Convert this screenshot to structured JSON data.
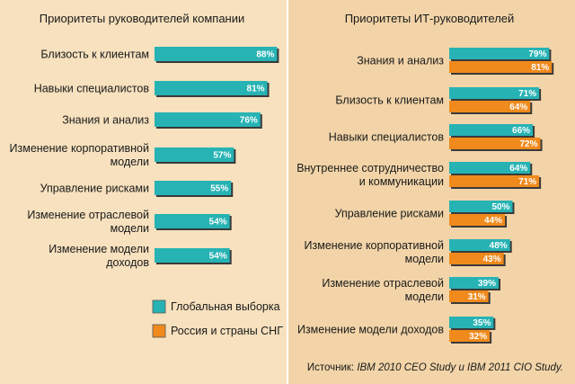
{
  "colors": {
    "background_left": "#f7e1be",
    "background_right": "#f2d4a8",
    "divider": "#ffffff",
    "global": "#27b3b4",
    "russia": "#f08a1c",
    "shadow": "#3a3a3a"
  },
  "legend": {
    "global": "Глобальная выборка",
    "russia": "Россия и страны СНГ"
  },
  "source": {
    "prefix": "Источник: ",
    "text": "IBM 2010 CEO Study и IBM 2011 CIO Study."
  },
  "chart_data": [
    {
      "type": "bar",
      "orientation": "horizontal",
      "title": "Приоритеты руководителей компании",
      "value_suffix": "%",
      "xlim": [
        0,
        100
      ],
      "categories": [
        [
          "Близость к клиентам"
        ],
        [
          "Навыки специалистов"
        ],
        [
          "Знания и анализ"
        ],
        [
          "Изменение корпоративной",
          "модели"
        ],
        [
          "Управление рисками"
        ],
        [
          "Изменение отраслевой",
          "модели"
        ],
        [
          "Изменение модели",
          "доходов"
        ]
      ],
      "series": [
        {
          "key": "global",
          "values": [
            88,
            81,
            76,
            57,
            55,
            54,
            54
          ]
        }
      ]
    },
    {
      "type": "bar",
      "orientation": "horizontal",
      "title": "Приоритеты ИТ-руководителей",
      "value_suffix": "%",
      "xlim": [
        0,
        100
      ],
      "categories": [
        [
          "Знания и анализ"
        ],
        [
          "Близость к клиентам"
        ],
        [
          "Навыки специалистов"
        ],
        [
          "Внутреннее сотрудничество",
          "и коммуникации"
        ],
        [
          "Управление рисками"
        ],
        [
          "Изменение корпоративной",
          "модели"
        ],
        [
          "Изменение отраслевой",
          "модели"
        ],
        [
          "Изменение модели доходов"
        ]
      ],
      "series": [
        {
          "key": "global",
          "values": [
            79,
            71,
            66,
            64,
            50,
            48,
            39,
            35
          ]
        },
        {
          "key": "russia",
          "values": [
            81,
            64,
            72,
            71,
            44,
            43,
            31,
            32
          ]
        }
      ]
    }
  ]
}
